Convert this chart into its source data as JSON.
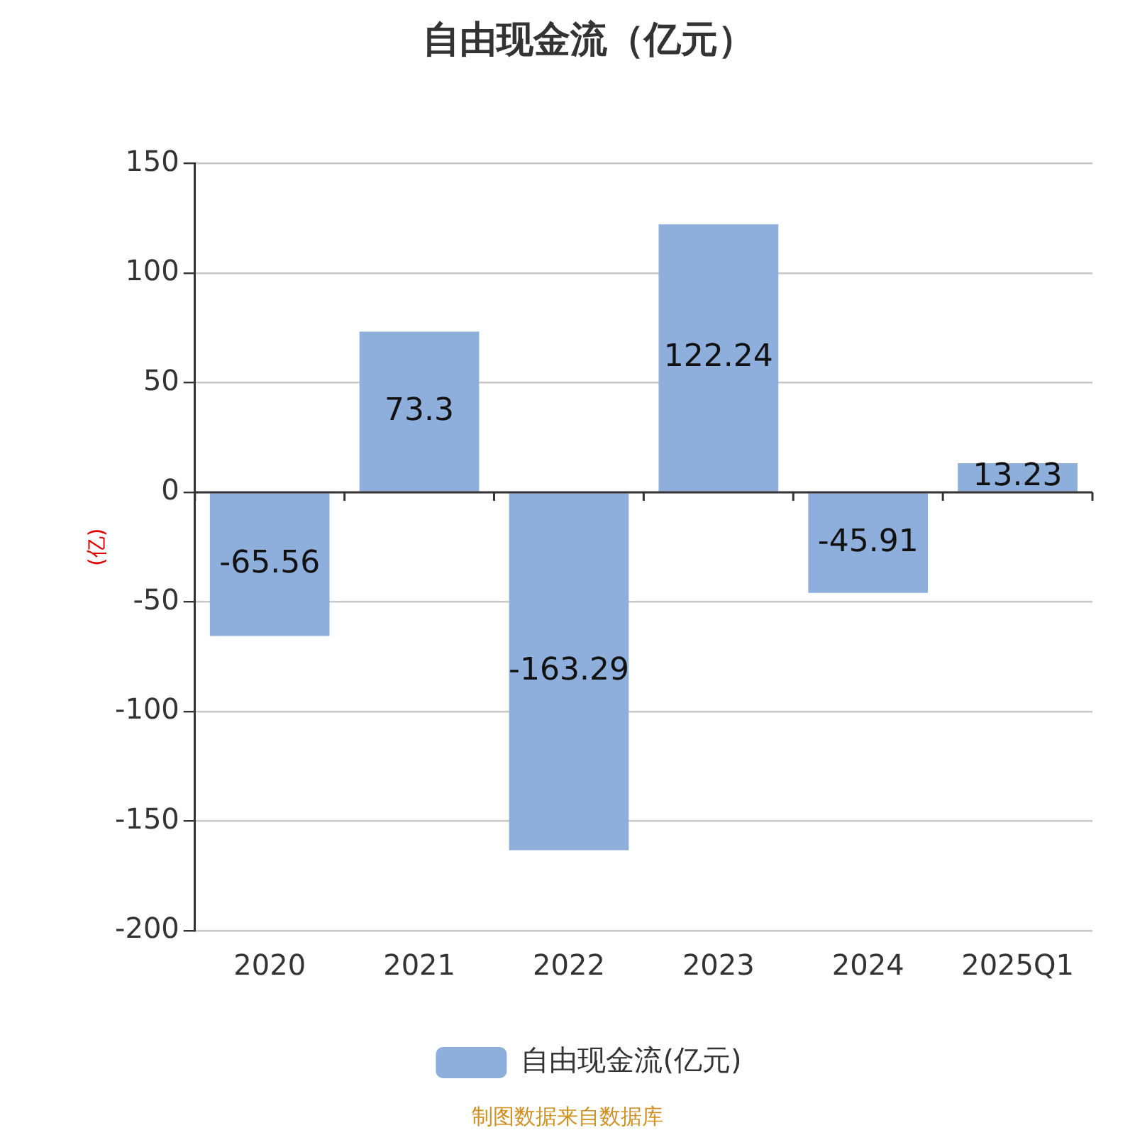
{
  "chart_data": {
    "type": "bar",
    "title": "自由现金流（亿元）",
    "ylabel": "(亿)",
    "categories": [
      "2020",
      "2021",
      "2022",
      "2023",
      "2024",
      "2025Q1"
    ],
    "series": [
      {
        "name": "自由现金流(亿元)",
        "color": "#8eaedb",
        "values": [
          -65.56,
          73.3,
          -163.29,
          122.24,
          -45.91,
          13.23
        ]
      }
    ],
    "ylim": [
      -200,
      150
    ],
    "yticks": [
      -200,
      -150,
      -100,
      -50,
      0,
      50,
      100,
      150
    ],
    "grid": "y",
    "legend": "bottom",
    "data_labels": true,
    "annotations": [
      "制图数据来自数据库"
    ]
  }
}
